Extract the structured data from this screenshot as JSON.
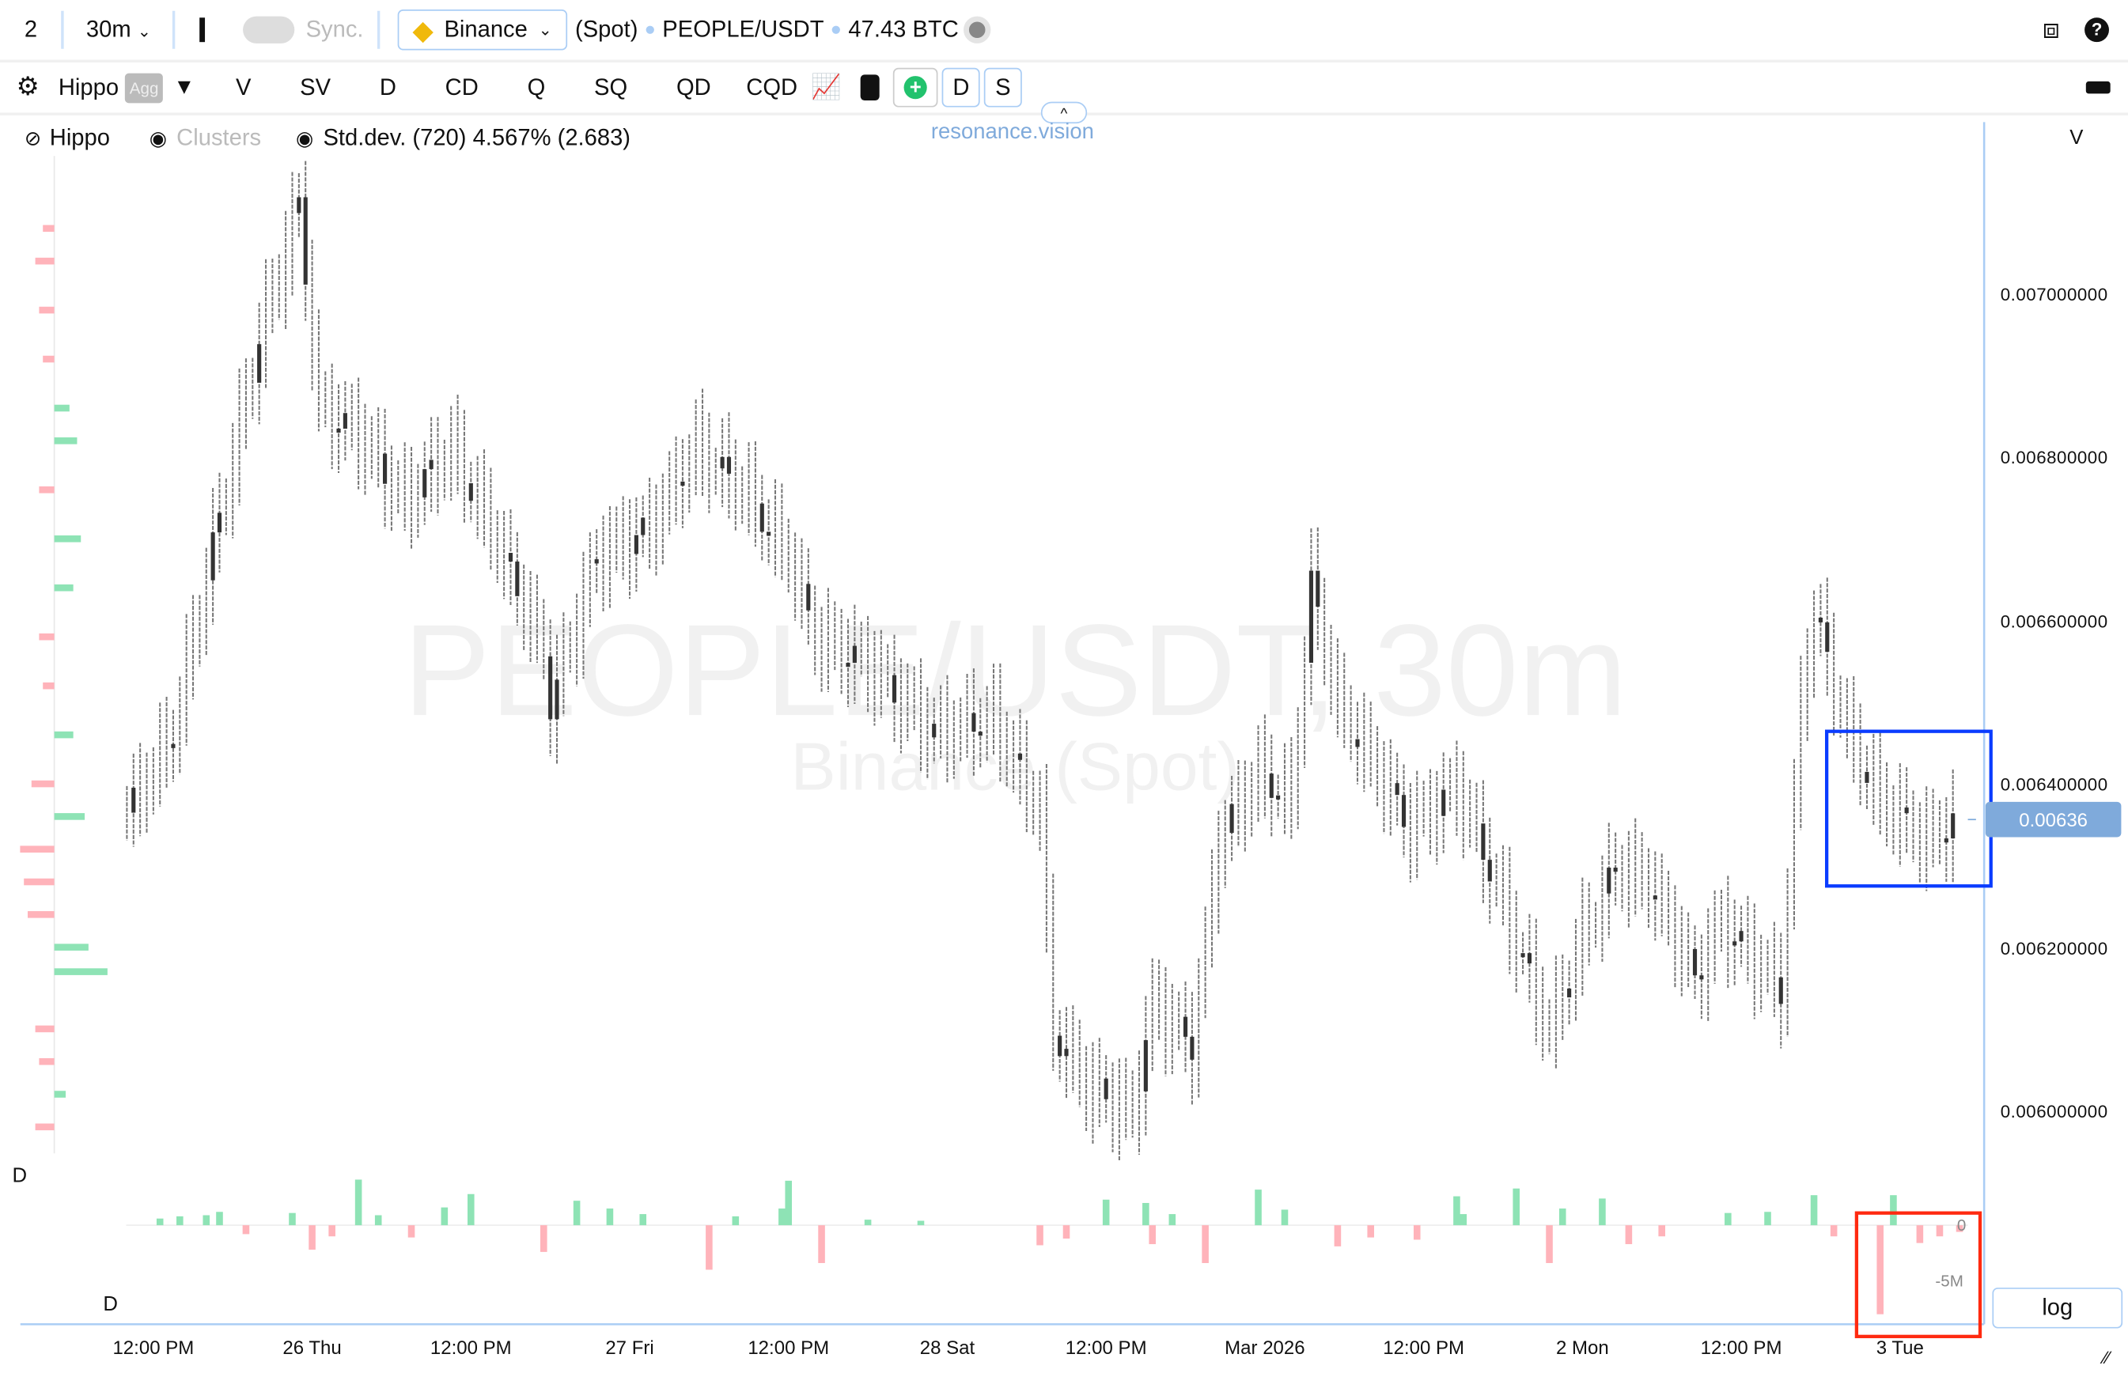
{
  "toolbar": {
    "layout": "2",
    "interval": "30m",
    "sync": "Sync.",
    "exchange": "Binance",
    "market": "(Spot)",
    "symbol": "PEOPLE/USDT",
    "volume": "47.43 BTC"
  },
  "toolbar2": {
    "preset": "Hippo",
    "agg": "Agg",
    "items": [
      "V",
      "SV",
      "D",
      "CD",
      "Q",
      "SQ",
      "QD",
      "CQD"
    ],
    "d_button": "D",
    "s_button": "S"
  },
  "legend": {
    "hippo": "Hippo",
    "clusters": "Clusters",
    "stddev": "Std.dev. (720) 4.567% (2.683)"
  },
  "brand": "resonance.vision",
  "watermark": {
    "title": "PEOPLE/USDT, 30m",
    "subtitle": "Binance (Spot)"
  },
  "panel_labels": {
    "price_axis": "V",
    "delta_top": "D",
    "delta_bottom": "D"
  },
  "log_button": "log",
  "colors": {
    "up": "#8ee3b5",
    "down": "#ffb3ba",
    "candle": "#777777",
    "last_price_bg": "#7faadb",
    "highlight_blue": "#0a3cff",
    "highlight_red": "#ff2a10",
    "axis": "#aacdf5"
  },
  "chart_data": [
    {
      "type": "candlestick",
      "interval": "30m",
      "ylim": [
        0.00592,
        0.00718
      ],
      "y_ticks": [
        "0.007000000",
        "0.006800000",
        "0.006600000",
        "0.006400000",
        "0.006200000",
        "0.006000000"
      ],
      "x_ticks": [
        "12:00 PM",
        "26 Thu",
        "12:00 PM",
        "27 Fri",
        "12:00 PM",
        "28 Sat",
        "12:00 PM",
        "Mar 2026",
        "12:00 PM",
        "2 Mon",
        "12:00 PM",
        "3 Tue"
      ],
      "last_price": "0.00636",
      "close_path": [
        [
          "02-25 10:00",
          0.006364
        ],
        [
          "02-25 13:30",
          0.006463
        ],
        [
          "02-25 17:00",
          0.006729
        ],
        [
          "02-25 20:00",
          0.006945
        ],
        [
          "02-25 23:00",
          0.007111
        ],
        [
          "02-26 00:30",
          0.006862
        ],
        [
          "02-26 03:30",
          0.006829
        ],
        [
          "02-26 07:00",
          0.006746
        ],
        [
          "02-26 10:30",
          0.006812
        ],
        [
          "02-26 13:30",
          0.006713
        ],
        [
          "02-26 17:30",
          0.006563
        ],
        [
          "02-26 18:00",
          0.006497
        ],
        [
          "02-26 21:30",
          0.006679
        ],
        [
          "02-27 01:30",
          0.006713
        ],
        [
          "02-27 05:00",
          0.006812
        ],
        [
          "02-27 08:30",
          0.006762
        ],
        [
          "02-27 12:00",
          0.006679
        ],
        [
          "02-27 14:00",
          0.00658
        ],
        [
          "02-27 18:00",
          0.006547
        ],
        [
          "02-27 23:00",
          0.006463
        ],
        [
          "02-28 03:30",
          0.00648
        ],
        [
          "02-28 07:00",
          0.006364
        ],
        [
          "02-28 08:00",
          0.006098
        ],
        [
          "02-28 10:30",
          0.006032
        ],
        [
          "02-28 14:00",
          0.005998
        ],
        [
          "02-28 15:30",
          0.006131
        ],
        [
          "02-28 18:30",
          0.006081
        ],
        [
          "02-28 20:30",
          0.006331
        ],
        [
          "02-28 23:30",
          0.006414
        ],
        [
          "03-01 02:00",
          0.00638
        ],
        [
          "03-01 03:30",
          0.006646
        ],
        [
          "03-01 05:30",
          0.006497
        ],
        [
          "03-01 08:00",
          0.00643
        ],
        [
          "03-01 11:00",
          0.006347
        ],
        [
          "03-01 14:30",
          0.006397
        ],
        [
          "03-01 17:00",
          0.006297
        ],
        [
          "03-01 21:30",
          0.006098
        ],
        [
          "03-02 00:00",
          0.006214
        ],
        [
          "03-02 02:30",
          0.006297
        ],
        [
          "03-02 05:00",
          0.006281
        ],
        [
          "03-02 08:30",
          0.006164
        ],
        [
          "03-02 10:30",
          0.006231
        ],
        [
          "03-02 15:00",
          0.006148
        ],
        [
          "03-02 16:30",
          0.006497
        ],
        [
          "03-02 17:30",
          0.006613
        ],
        [
          "03-02 20:00",
          0.006463
        ],
        [
          "03-02 22:30",
          0.00638
        ],
        [
          "03-03 02:00",
          0.006331
        ],
        [
          "03-03 04:30",
          0.00636
        ]
      ]
    },
    {
      "type": "bar",
      "name": "D",
      "unit": "M",
      "y_ticks": [
        "0",
        "-5M"
      ],
      "values": [
        [
          "02-25 12:30",
          0.6
        ],
        [
          "02-25 14:00",
          0.8
        ],
        [
          "02-25 16:00",
          0.9
        ],
        [
          "02-25 17:00",
          1.2
        ],
        [
          "02-25 19:00",
          -0.8
        ],
        [
          "02-25 22:30",
          1.1
        ],
        [
          "02-26 00:00",
          -2.2
        ],
        [
          "02-26 01:30",
          -1.0
        ],
        [
          "02-26 03:30",
          4.1
        ],
        [
          "02-26 05:00",
          0.9
        ],
        [
          "02-26 07:30",
          -1.1
        ],
        [
          "02-26 10:00",
          1.6
        ],
        [
          "02-26 12:00",
          2.8
        ],
        [
          "02-26 17:30",
          -2.4
        ],
        [
          "02-26 20:00",
          2.2
        ],
        [
          "02-26 22:30",
          1.5
        ],
        [
          "02-27 01:00",
          1.0
        ],
        [
          "02-27 06:00",
          -4.0
        ],
        [
          "02-27 08:00",
          0.8
        ],
        [
          "02-27 11:30",
          1.5
        ],
        [
          "02-27 12:00",
          4.0
        ],
        [
          "02-27 14:30",
          -3.4
        ],
        [
          "02-27 18:00",
          0.5
        ],
        [
          "02-27 22:00",
          0.4
        ],
        [
          "02-28 07:00",
          -1.8
        ],
        [
          "02-28 09:00",
          -1.2
        ],
        [
          "02-28 12:00",
          2.3
        ],
        [
          "02-28 15:00",
          2.0
        ],
        [
          "02-28 15:30",
          -1.7
        ],
        [
          "02-28 17:00",
          1.0
        ],
        [
          "02-28 19:30",
          -3.4
        ],
        [
          "02-28 23:30",
          3.2
        ],
        [
          "03-01 01:30",
          1.4
        ],
        [
          "03-01 05:30",
          -1.9
        ],
        [
          "03-01 08:00",
          -1.1
        ],
        [
          "03-01 11:30",
          -1.3
        ],
        [
          "03-01 14:30",
          2.6
        ],
        [
          "03-01 15:00",
          1.0
        ],
        [
          "03-01 19:00",
          3.3
        ],
        [
          "03-01 21:30",
          -3.4
        ],
        [
          "03-01 22:30",
          1.5
        ],
        [
          "03-02 01:30",
          2.4
        ],
        [
          "03-02 03:30",
          -1.7
        ],
        [
          "03-02 06:00",
          -1.0
        ],
        [
          "03-02 11:00",
          1.1
        ],
        [
          "03-02 14:00",
          1.2
        ],
        [
          "03-02 17:30",
          2.7
        ],
        [
          "03-02 19:00",
          -1.0
        ],
        [
          "03-02 22:30",
          -8.0
        ],
        [
          "03-02 23:30",
          2.7
        ],
        [
          "03-03 01:30",
          -1.6
        ],
        [
          "03-03 03:00",
          -1.0
        ],
        [
          "03-03 04:30",
          -0.6
        ]
      ]
    }
  ],
  "volume_profile": [
    [
      0.00708,
      -0.3
    ],
    [
      0.00704,
      -0.5
    ],
    [
      0.00698,
      -0.4
    ],
    [
      0.00692,
      -0.3
    ],
    [
      0.00686,
      0.4
    ],
    [
      0.00682,
      0.6
    ],
    [
      0.00676,
      -0.4
    ],
    [
      0.0067,
      0.7
    ],
    [
      0.00664,
      0.5
    ],
    [
      0.00658,
      -0.4
    ],
    [
      0.00652,
      -0.3
    ],
    [
      0.00646,
      0.5
    ],
    [
      0.0064,
      -0.6
    ],
    [
      0.00636,
      0.8
    ],
    [
      0.00632,
      -0.9
    ],
    [
      0.00628,
      -0.8
    ],
    [
      0.00624,
      -0.7
    ],
    [
      0.0062,
      0.9
    ],
    [
      0.00617,
      1.4
    ],
    [
      0.0061,
      -0.5
    ],
    [
      0.00606,
      -0.4
    ],
    [
      0.00602,
      0.3
    ],
    [
      0.00598,
      -0.5
    ]
  ]
}
